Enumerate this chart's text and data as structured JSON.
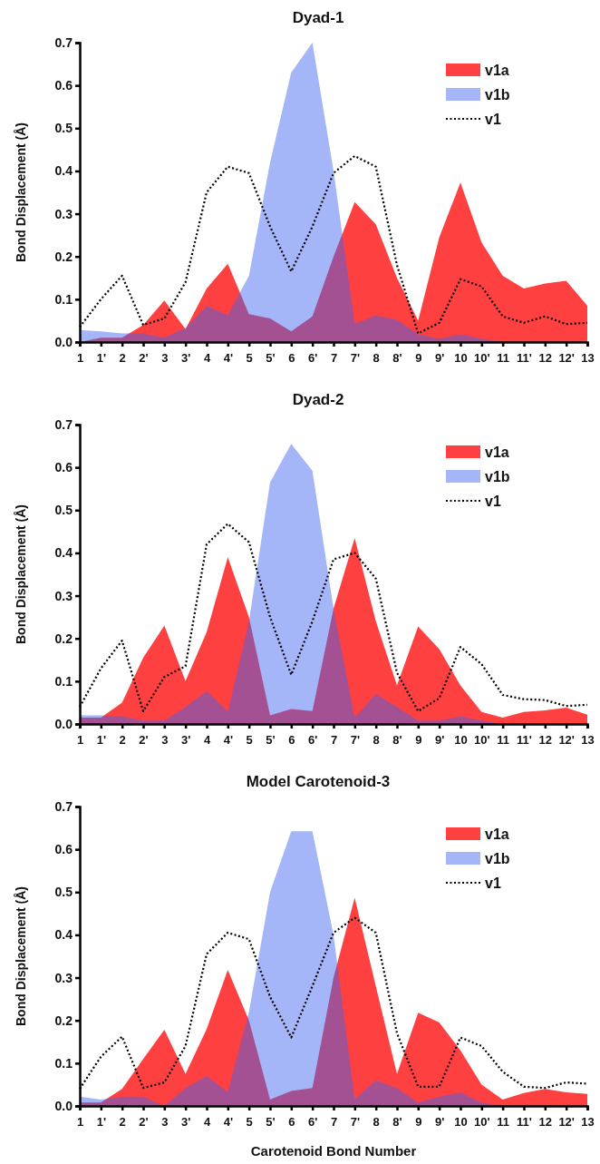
{
  "chart_data": [
    {
      "type": "area",
      "title": "Dyad-1",
      "ylabel": "Bond Displacement (Å)",
      "categories": [
        "1",
        "1'",
        "2",
        "2'",
        "3",
        "3'",
        "4",
        "4'",
        "5",
        "5'",
        "6",
        "6'",
        "7",
        "7'",
        "8",
        "8'",
        "9",
        "9'",
        "10",
        "10'",
        "11",
        "11'",
        "12",
        "12'",
        "13"
      ],
      "series": [
        {
          "name": "v1a",
          "color": "#ff4040",
          "values": [
            0.0,
            0.01,
            0.01,
            0.04,
            0.097,
            0.03,
            0.125,
            0.183,
            0.065,
            0.055,
            0.025,
            0.06,
            0.2,
            0.327,
            0.275,
            0.15,
            0.05,
            0.245,
            0.373,
            0.233,
            0.155,
            0.125,
            0.137,
            0.143,
            0.085
          ]
        },
        {
          "name": "v1b",
          "color": "#4065f0",
          "values": [
            0.028,
            0.025,
            0.02,
            0.02,
            0.01,
            0.033,
            0.085,
            0.063,
            0.155,
            0.42,
            0.63,
            0.7,
            0.4,
            0.043,
            0.062,
            0.052,
            0.018,
            0.008,
            0.018,
            0.008,
            0.0,
            0.0,
            0.0,
            0.0,
            0.0
          ]
        },
        {
          "name": "v1",
          "type": "line",
          "color": "#000000",
          "line_style": "dotted",
          "values": [
            0.035,
            0.1,
            0.155,
            0.04,
            0.055,
            0.14,
            0.35,
            0.41,
            0.395,
            0.27,
            0.165,
            0.27,
            0.395,
            0.435,
            0.41,
            0.18,
            0.02,
            0.045,
            0.147,
            0.13,
            0.06,
            0.045,
            0.06,
            0.042,
            0.045
          ]
        }
      ],
      "ylim": [
        0,
        0.7
      ],
      "yticks": [
        {
          "value": 0,
          "label": "0.0"
        },
        {
          "value": 0.1,
          "label": "0.1"
        },
        {
          "value": 0.2,
          "label": "0.2"
        },
        {
          "value": 0.3,
          "label": "0.3"
        },
        {
          "value": 0.4,
          "label": "0.4"
        },
        {
          "value": 0.5,
          "label": "0.5"
        },
        {
          "value": 0.6,
          "label": "0.6"
        },
        {
          "value": 0.7,
          "label": "0.7"
        }
      ],
      "legend": "top right"
    },
    {
      "type": "area",
      "title": "Dyad-2",
      "ylabel": "Bond Displacement (Å)",
      "categories": [
        "1",
        "1'",
        "2",
        "2'",
        "3",
        "3'",
        "4",
        "4'",
        "5",
        "5'",
        "6",
        "6'",
        "7",
        "7'",
        "8",
        "8'",
        "9",
        "9'",
        "10",
        "10'",
        "11",
        "11'",
        "12",
        "12'",
        "13"
      ],
      "series": [
        {
          "name": "v1a",
          "color": "#ff4040",
          "values": [
            0.015,
            0.015,
            0.05,
            0.155,
            0.23,
            0.1,
            0.215,
            0.39,
            0.25,
            0.02,
            0.035,
            0.03,
            0.27,
            0.435,
            0.24,
            0.09,
            0.228,
            0.175,
            0.09,
            0.028,
            0.015,
            0.028,
            0.032,
            0.038,
            0.022
          ]
        },
        {
          "name": "v1b",
          "color": "#4065f0",
          "values": [
            0.02,
            0.02,
            0.018,
            0.008,
            0.008,
            0.04,
            0.077,
            0.028,
            0.24,
            0.565,
            0.655,
            0.592,
            0.27,
            0.015,
            0.07,
            0.04,
            0.008,
            0.008,
            0.018,
            0.008,
            0.0,
            0.0,
            0.0,
            0.0,
            0.0
          ]
        },
        {
          "name": "v1",
          "type": "line",
          "color": "#000000",
          "line_style": "dotted",
          "values": [
            0.04,
            0.13,
            0.195,
            0.03,
            0.11,
            0.135,
            0.42,
            0.468,
            0.425,
            0.25,
            0.115,
            0.24,
            0.385,
            0.4,
            0.34,
            0.12,
            0.03,
            0.06,
            0.18,
            0.14,
            0.068,
            0.058,
            0.056,
            0.042,
            0.045
          ]
        }
      ],
      "ylim": [
        0,
        0.7
      ],
      "yticks": [
        {
          "value": 0,
          "label": "0.0"
        },
        {
          "value": 0.1,
          "label": "0.1"
        },
        {
          "value": 0.2,
          "label": "0.2"
        },
        {
          "value": 0.3,
          "label": "0.3"
        },
        {
          "value": 0.4,
          "label": "0.4"
        },
        {
          "value": 0.5,
          "label": "0.5"
        },
        {
          "value": 0.6,
          "label": "0.6"
        },
        {
          "value": 0.7,
          "label": "0.7"
        }
      ],
      "legend": "top right"
    },
    {
      "type": "area",
      "title": "Model Carotenoid-3",
      "ylabel": "Bond Displacement (Å)",
      "xlabel": "Carotenoid Bond Number",
      "categories": [
        "1",
        "1'",
        "2",
        "2'",
        "3",
        "3'",
        "4",
        "4'",
        "5",
        "5'",
        "6",
        "6'",
        "7",
        "7'",
        "8",
        "8'",
        "9",
        "9'",
        "10",
        "10'",
        "11",
        "11'",
        "12",
        "12'",
        "13"
      ],
      "series": [
        {
          "name": "v1a",
          "color": "#ff4040",
          "values": [
            0.008,
            0.008,
            0.04,
            0.11,
            0.178,
            0.075,
            0.18,
            0.318,
            0.2,
            0.015,
            0.035,
            0.042,
            0.3,
            0.487,
            0.28,
            0.075,
            0.218,
            0.195,
            0.13,
            0.05,
            0.015,
            0.03,
            0.04,
            0.032,
            0.028
          ]
        },
        {
          "name": "v1b",
          "color": "#4065f0",
          "values": [
            0.022,
            0.015,
            0.022,
            0.022,
            0.0,
            0.042,
            0.07,
            0.033,
            0.22,
            0.5,
            0.642,
            0.642,
            0.4,
            0.016,
            0.06,
            0.042,
            0.008,
            0.022,
            0.032,
            0.008,
            0.0,
            0.0,
            0.0,
            0.0,
            0.0
          ]
        },
        {
          "name": "v1",
          "type": "line",
          "color": "#000000",
          "line_style": "dotted",
          "values": [
            0.04,
            0.115,
            0.162,
            0.042,
            0.055,
            0.14,
            0.355,
            0.405,
            0.39,
            0.255,
            0.16,
            0.28,
            0.405,
            0.44,
            0.405,
            0.17,
            0.045,
            0.045,
            0.16,
            0.14,
            0.08,
            0.045,
            0.042,
            0.055,
            0.052
          ]
        }
      ],
      "ylim": [
        0,
        0.7
      ],
      "yticks": [
        {
          "value": 0,
          "label": "0.0"
        },
        {
          "value": 0.1,
          "label": "0.1"
        },
        {
          "value": 0.2,
          "label": "0.2"
        },
        {
          "value": 0.3,
          "label": "0.3"
        },
        {
          "value": 0.4,
          "label": "0.4"
        },
        {
          "value": 0.5,
          "label": "0.5"
        },
        {
          "value": 0.6,
          "label": "0.6"
        },
        {
          "value": 0.7,
          "label": "0.7"
        }
      ],
      "legend": "top right"
    }
  ]
}
